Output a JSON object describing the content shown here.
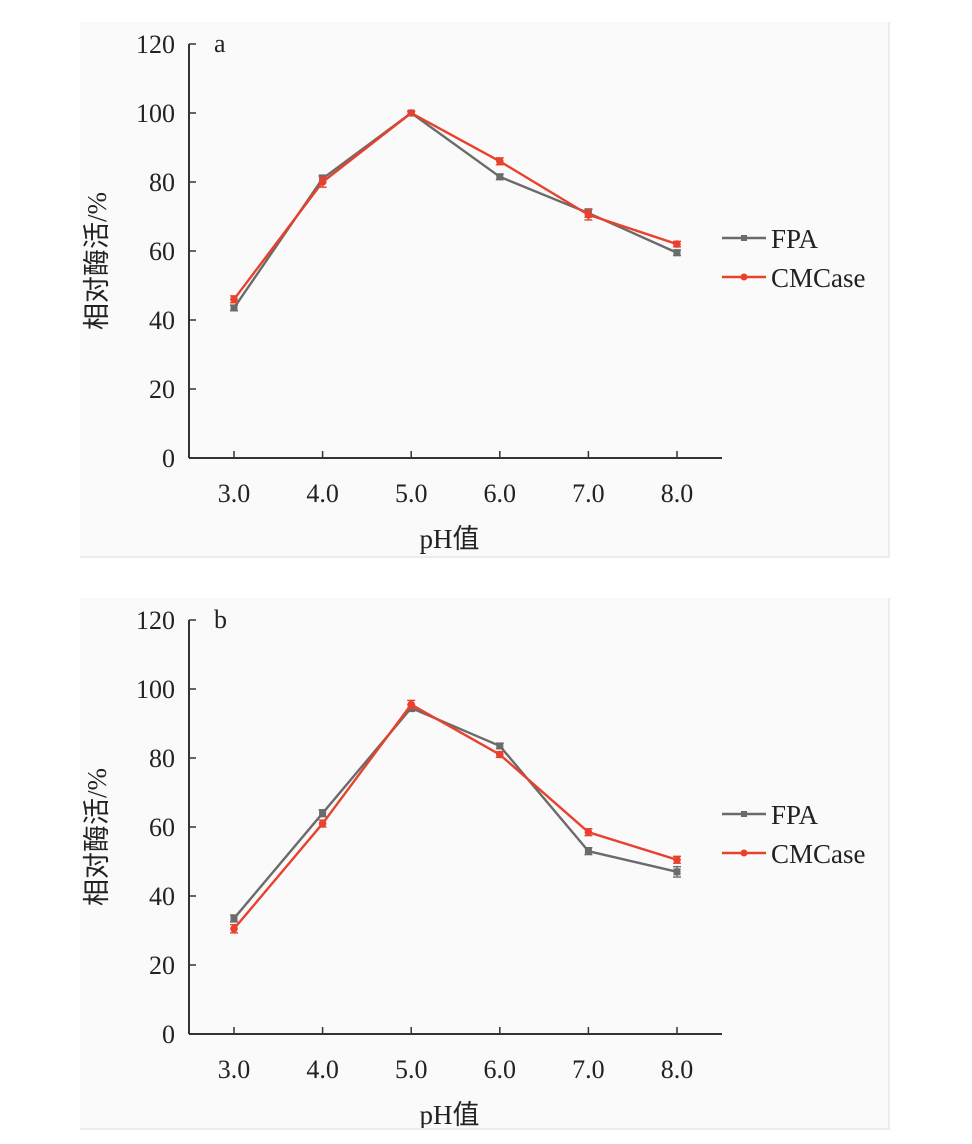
{
  "chart_data": [
    {
      "type": "line",
      "panel_label": "a",
      "xlabel": "pH值",
      "ylabel": "相对酶活/%",
      "categories": [
        "3.0",
        "4.0",
        "5.0",
        "6.0",
        "7.0",
        "8.0"
      ],
      "x": [
        3.0,
        4.0,
        5.0,
        6.0,
        7.0,
        8.0
      ],
      "ylim": [
        0,
        120
      ],
      "yticks": [
        0,
        20,
        40,
        60,
        80,
        100,
        120
      ],
      "grid": false,
      "legend_position": "right",
      "series": [
        {
          "name": "FPA",
          "color": "#6b6b6b",
          "values": [
            43.5,
            81.0,
            100.0,
            81.5,
            71.0,
            59.5
          ],
          "errors": [
            0.8,
            1.0,
            0.5,
            0.8,
            1.2,
            0.8
          ]
        },
        {
          "name": "CMCase",
          "color": "#e8412e",
          "values": [
            46.0,
            80.0,
            100.0,
            86.0,
            70.5,
            62.0
          ],
          "errors": [
            1.0,
            1.5,
            0.5,
            1.0,
            1.5,
            0.8
          ]
        }
      ]
    },
    {
      "type": "line",
      "panel_label": "b",
      "xlabel": "pH值",
      "ylabel": "相对酶活/%",
      "categories": [
        "3.0",
        "4.0",
        "5.0",
        "6.0",
        "7.0",
        "8.0"
      ],
      "x": [
        3.0,
        4.0,
        5.0,
        6.0,
        7.0,
        8.0
      ],
      "ylim": [
        0,
        120
      ],
      "yticks": [
        0,
        20,
        40,
        60,
        80,
        100,
        120
      ],
      "grid": false,
      "legend_position": "right",
      "series": [
        {
          "name": "FPA",
          "color": "#6b6b6b",
          "values": [
            33.5,
            64.0,
            94.5,
            83.5,
            53.0,
            47.0
          ],
          "errors": [
            1.0,
            1.0,
            1.0,
            0.8,
            1.0,
            1.5
          ]
        },
        {
          "name": "CMCase",
          "color": "#e8412e",
          "values": [
            30.5,
            61.0,
            95.5,
            81.0,
            58.5,
            50.5
          ],
          "errors": [
            1.2,
            1.0,
            1.2,
            0.8,
            1.0,
            1.0
          ]
        }
      ]
    }
  ]
}
